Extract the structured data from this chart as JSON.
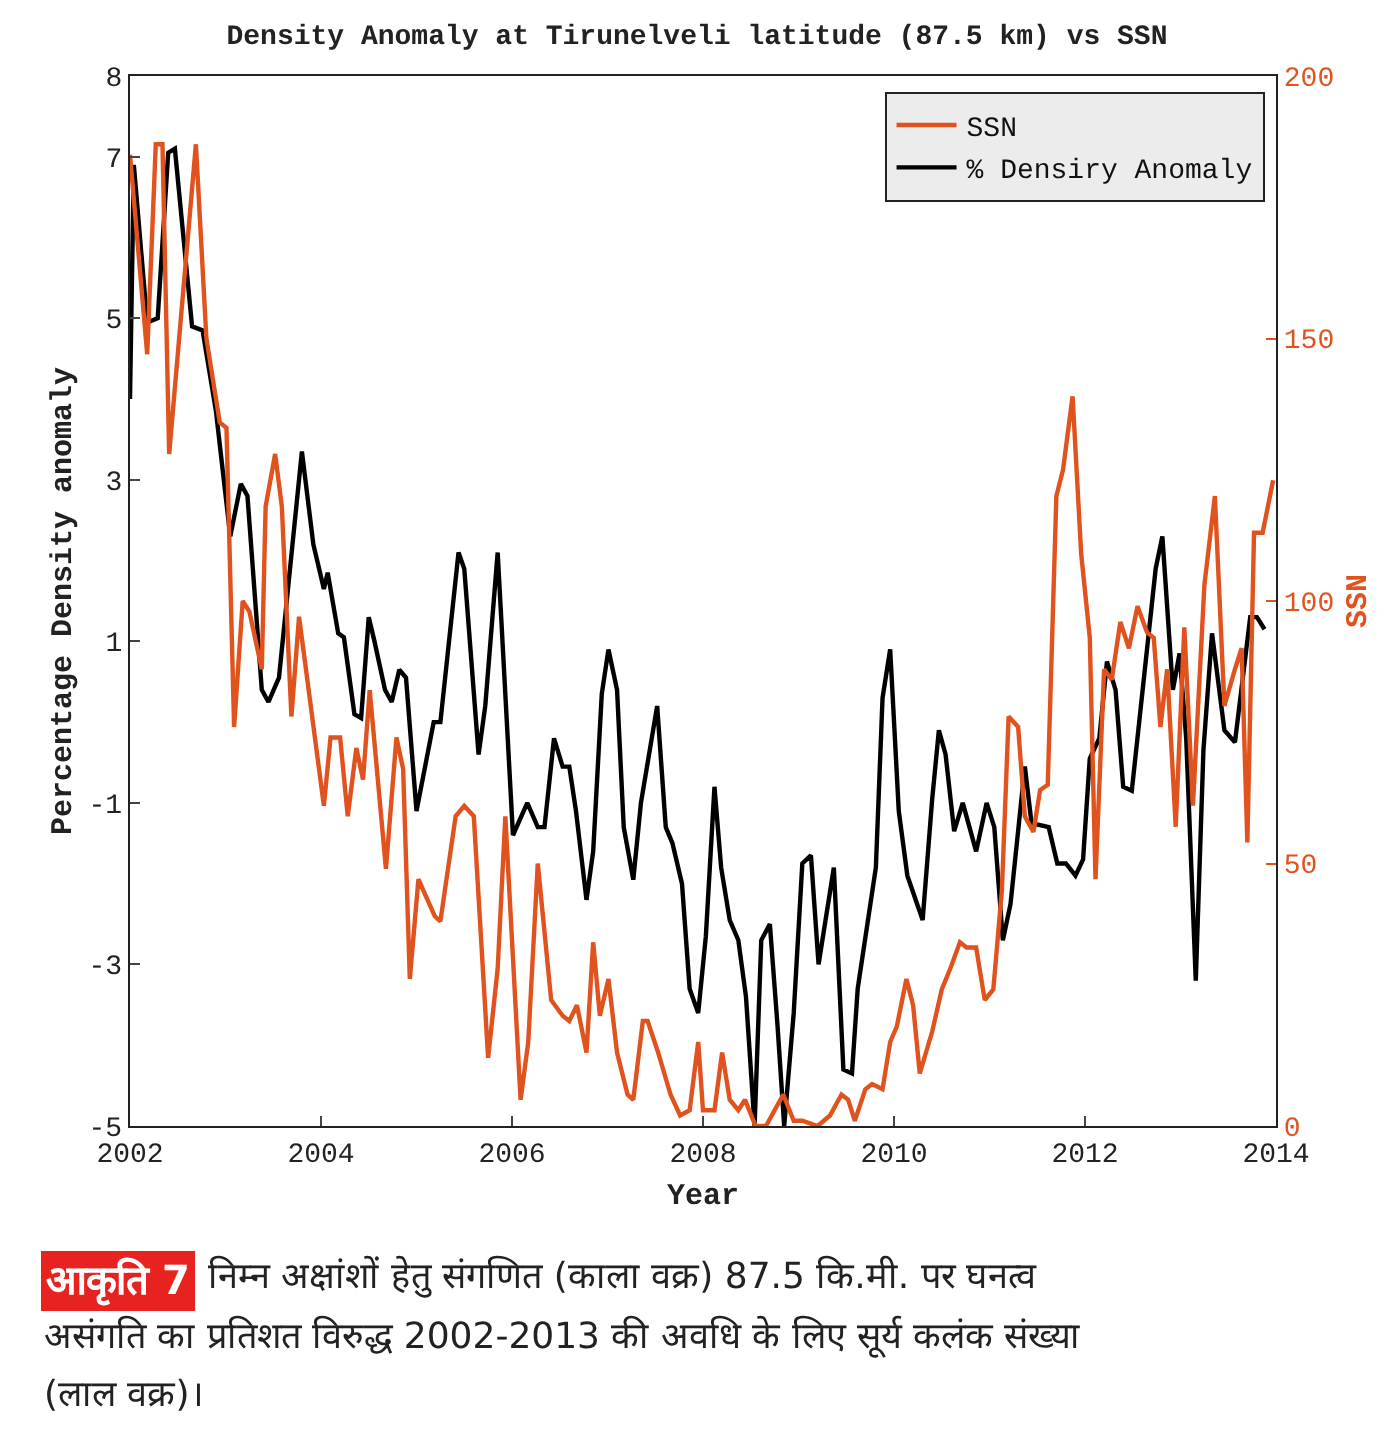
{
  "chart_data": {
    "type": "line",
    "title": "Density Anomaly at Tirunelveli latitude (87.5 km) vs SSN",
    "xlabel": "Year",
    "ylabel": "Percentage Density anomaly",
    "y2label": "SSN",
    "xlim": [
      2002,
      2014
    ],
    "xticks": [
      2002,
      2004,
      2006,
      2008,
      2010,
      2012,
      2014
    ],
    "ylim": [
      -5,
      8
    ],
    "yticks": [
      -5,
      -3,
      -1,
      1,
      3,
      5,
      7,
      8
    ],
    "y2lim": [
      0,
      200
    ],
    "y2ticks": [
      0,
      50,
      100,
      150,
      200
    ],
    "legend": "top right",
    "grid": false,
    "series": [
      {
        "name": "SSN",
        "color": "#e0531f",
        "axis": "y2",
        "x": [
          2002.0,
          2002.18,
          2002.27,
          2002.34,
          2002.41,
          2002.69,
          2002.8,
          2002.94,
          2003.01,
          2003.09,
          2003.18,
          2003.25,
          2003.38,
          2003.42,
          2003.52,
          2003.59,
          2003.69,
          2003.77,
          2004.03,
          2004.1,
          2004.2,
          2004.28,
          2004.37,
          2004.44,
          2004.51,
          2004.68,
          2004.79,
          2004.86,
          2004.93,
          2005.02,
          2005.19,
          2005.25,
          2005.41,
          2005.5,
          2005.6,
          2005.75,
          2005.85,
          2005.93,
          2006.09,
          2006.17,
          2006.27,
          2006.41,
          2006.53,
          2006.6,
          2006.68,
          2006.78,
          2006.85,
          2006.92,
          2007.01,
          2007.1,
          2007.21,
          2007.27,
          2007.37,
          2007.42,
          2007.53,
          2007.66,
          2007.76,
          2007.86,
          2007.95,
          2008.0,
          2008.12,
          2008.2,
          2008.28,
          2008.37,
          2008.44,
          2008.55,
          2008.66,
          2008.84,
          2008.95,
          2009.04,
          2009.2,
          2009.33,
          2009.45,
          2009.52,
          2009.59,
          2009.7,
          2009.77,
          2009.88,
          2009.96,
          2010.03,
          2010.13,
          2010.2,
          2010.27,
          2010.4,
          2010.5,
          2010.59,
          2010.69,
          2010.76,
          2010.86,
          2010.95,
          2011.04,
          2011.13,
          2011.2,
          2011.3,
          2011.37,
          2011.46,
          2011.53,
          2011.61,
          2011.7,
          2011.77,
          2011.87,
          2011.96,
          2012.05,
          2012.11,
          2012.2,
          2012.28,
          2012.37,
          2012.46,
          2012.55,
          2012.65,
          2012.72,
          2012.79,
          2012.86,
          2012.95,
          2013.04,
          2013.13,
          2013.25,
          2013.36,
          2013.46,
          2013.57,
          2013.64,
          2013.7,
          2013.77,
          2013.86,
          2013.97
        ],
        "values": [
          185,
          147,
          187,
          187,
          128,
          187,
          150,
          134,
          133,
          76,
          100,
          98,
          87,
          118,
          128,
          118,
          78,
          97,
          61,
          74,
          74,
          59,
          72,
          66,
          83,
          49,
          74,
          68,
          28,
          47,
          40,
          39,
          59,
          61,
          59,
          13,
          30,
          59,
          5,
          16,
          50,
          24,
          21,
          20,
          23,
          14,
          35,
          21,
          28,
          14,
          6,
          5,
          20,
          20,
          14,
          6,
          2,
          3,
          16,
          3,
          3,
          14,
          5,
          3,
          5,
          0,
          0,
          6,
          1,
          1,
          0,
          2,
          6,
          5,
          1,
          7,
          8,
          7,
          16,
          19,
          28,
          23,
          10,
          18,
          26,
          30,
          35,
          34,
          34,
          24,
          26,
          45,
          78,
          76,
          59,
          56,
          64,
          65,
          120,
          125,
          139,
          109,
          93,
          47,
          87,
          85,
          96,
          91,
          99,
          94,
          93,
          76,
          87,
          57,
          95,
          61,
          103,
          120,
          80,
          87,
          91,
          54,
          113,
          113,
          123
        ]
      },
      {
        "name": "% Densiry Anomaly",
        "color": "#000000",
        "x": [
          2002.0,
          2002.04,
          2002.18,
          2002.29,
          2002.4,
          2002.47,
          2002.65,
          2002.76,
          2002.9,
          2003.05,
          2003.16,
          2003.23,
          2003.38,
          2003.45,
          2003.56,
          2003.8,
          2003.92,
          2004.03,
          2004.07,
          2004.18,
          2004.24,
          2004.35,
          2004.42,
          2004.5,
          2004.56,
          2004.67,
          2004.74,
          2004.82,
          2004.89,
          2005.0,
          2005.18,
          2005.25,
          2005.44,
          2005.5,
          2005.65,
          2005.72,
          2005.85,
          2006.01,
          2006.16,
          2006.27,
          2006.34,
          2006.44,
          2006.53,
          2006.6,
          2006.67,
          2006.78,
          2006.85,
          2006.94,
          2007.01,
          2007.1,
          2007.17,
          2007.27,
          2007.35,
          2007.52,
          2007.61,
          2007.68,
          2007.78,
          2007.86,
          2007.95,
          2008.03,
          2008.12,
          2008.19,
          2008.28,
          2008.37,
          2008.45,
          2008.54,
          2008.61,
          2008.7,
          2008.78,
          2008.85,
          2008.95,
          2009.04,
          2009.13,
          2009.21,
          2009.37,
          2009.47,
          2009.56,
          2009.62,
          2009.81,
          2009.88,
          2009.96,
          2010.05,
          2010.14,
          2010.3,
          2010.4,
          2010.47,
          2010.54,
          2010.63,
          2010.72,
          2010.86,
          2010.97,
          2011.05,
          2011.14,
          2011.22,
          2011.37,
          2011.44,
          2011.62,
          2011.71,
          2011.8,
          2011.9,
          2011.98,
          2012.05,
          2012.15,
          2012.23,
          2012.32,
          2012.4,
          2012.49,
          2012.74,
          2012.81,
          2012.92,
          2012.99,
          2013.06,
          2013.16,
          2013.24,
          2013.33,
          2013.46,
          2013.57,
          2013.73,
          2013.8,
          2013.88
        ],
        "values": [
          4.0,
          6.9,
          4.95,
          5.0,
          7.05,
          7.1,
          4.9,
          4.85,
          3.85,
          2.3,
          2.95,
          2.8,
          0.4,
          0.25,
          0.55,
          3.35,
          2.2,
          1.65,
          1.85,
          1.1,
          1.05,
          0.1,
          0.05,
          1.3,
          1.0,
          0.4,
          0.25,
          0.65,
          0.55,
          -1.1,
          0.0,
          0.0,
          2.1,
          1.9,
          -0.4,
          0.2,
          2.1,
          -1.4,
          -1.0,
          -1.3,
          -1.3,
          -0.2,
          -0.55,
          -0.55,
          -1.1,
          -2.2,
          -1.6,
          0.35,
          0.9,
          0.4,
          -1.3,
          -1.95,
          -1.0,
          0.2,
          -1.3,
          -1.5,
          -2.0,
          -3.3,
          -3.6,
          -2.65,
          -0.8,
          -1.8,
          -2.45,
          -2.7,
          -3.4,
          -5.0,
          -2.7,
          -2.5,
          -3.75,
          -5.0,
          -3.6,
          -1.75,
          -1.65,
          -3.0,
          -1.8,
          -4.3,
          -4.35,
          -3.3,
          -1.8,
          0.3,
          0.9,
          -1.1,
          -1.9,
          -2.45,
          -0.95,
          -0.1,
          -0.4,
          -1.35,
          -1.0,
          -1.6,
          -1.0,
          -1.3,
          -2.7,
          -2.25,
          -0.55,
          -1.25,
          -1.3,
          -1.75,
          -1.75,
          -1.9,
          -1.7,
          -0.45,
          -0.2,
          0.75,
          0.4,
          -0.8,
          -0.85,
          1.9,
          2.3,
          0.4,
          0.85,
          -0.2,
          -3.2,
          -0.35,
          1.1,
          -0.1,
          -0.25,
          1.3,
          1.3,
          1.15
        ]
      }
    ],
    "annotations": [
      "आकृति 7",
      "निम्न अक्षांशों हेतु संगणित (काला वक्र) 87.5 कि.मी. पर घनत्व असंगति का प्रतिशत विरुद्ध 2002-2013 की अवधि के लिए सूर्य कलंक संख्या (लाल वक्र)।"
    ]
  }
}
